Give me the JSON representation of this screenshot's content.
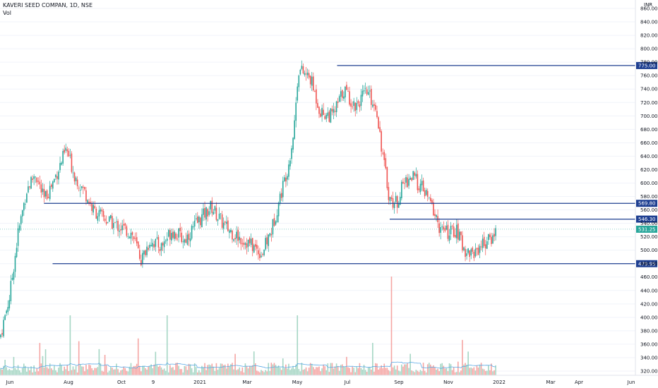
{
  "header": {
    "symbol": "KAVERI SEED COMPAN, 1D, NSE",
    "volume_label": "Vol",
    "currency": "INR"
  },
  "colors": {
    "up": "#26a69a",
    "down": "#ef5350",
    "vol_up": "#a5d6c4",
    "vol_down": "#f5a5a3",
    "vol_ma": "#5aa9e6",
    "level_line": "#1e3f91",
    "price_badge": "#26a69a",
    "grid": "#f0f3fa",
    "axis_text": "#131722"
  },
  "chart_data": {
    "type": "candlestick",
    "title": "KAVERI SEED COMPAN, 1D, NSE",
    "ylim": [
      310,
      860
    ],
    "y_ticks": [
      "320.00",
      "340.00",
      "360.00",
      "380.00",
      "400.00",
      "420.00",
      "440.00",
      "460.00",
      "480.00",
      "500.00",
      "520.00",
      "540.00",
      "560.00",
      "580.00",
      "600.00",
      "620.00",
      "640.00",
      "660.00",
      "680.00",
      "700.00",
      "720.00",
      "740.00",
      "760.00",
      "780.00",
      "800.00",
      "820.00",
      "840.00",
      "860.00"
    ],
    "x_ticks": [
      "Jun",
      "Aug",
      "Oct",
      "9",
      "2021",
      "Mar",
      "May",
      "Jul",
      "Sep",
      "Nov",
      "2022",
      "Mar",
      "Apr",
      "Jun"
    ],
    "price_path": [
      {
        "date": "2020-05-25",
        "price": 370
      },
      {
        "date": "2020-06-05",
        "price": 430
      },
      {
        "date": "2020-06-15",
        "price": 525
      },
      {
        "date": "2020-06-25",
        "price": 590
      },
      {
        "date": "2020-07-05",
        "price": 615
      },
      {
        "date": "2020-07-15",
        "price": 575
      },
      {
        "date": "2020-07-25",
        "price": 600
      },
      {
        "date": "2020-08-10",
        "price": 650
      },
      {
        "date": "2020-08-20",
        "price": 610
      },
      {
        "date": "2020-09-01",
        "price": 585
      },
      {
        "date": "2020-09-10",
        "price": 560
      },
      {
        "date": "2020-09-25",
        "price": 545
      },
      {
        "date": "2020-10-10",
        "price": 535
      },
      {
        "date": "2020-10-25",
        "price": 525
      },
      {
        "date": "2020-11-05",
        "price": 485
      },
      {
        "date": "2020-11-15",
        "price": 515
      },
      {
        "date": "2020-11-28",
        "price": 505
      },
      {
        "date": "2020-12-10",
        "price": 530
      },
      {
        "date": "2020-12-25",
        "price": 515
      },
      {
        "date": "2021-01-08",
        "price": 540
      },
      {
        "date": "2021-01-25",
        "price": 565
      },
      {
        "date": "2021-02-10",
        "price": 535
      },
      {
        "date": "2021-02-25",
        "price": 520
      },
      {
        "date": "2021-03-10",
        "price": 510
      },
      {
        "date": "2021-03-25",
        "price": 495
      },
      {
        "date": "2021-04-05",
        "price": 530
      },
      {
        "date": "2021-04-15",
        "price": 580
      },
      {
        "date": "2021-04-25",
        "price": 630
      },
      {
        "date": "2021-05-01",
        "price": 680
      },
      {
        "date": "2021-05-06",
        "price": 770
      },
      {
        "date": "2021-05-20",
        "price": 755
      },
      {
        "date": "2021-06-01",
        "price": 705
      },
      {
        "date": "2021-06-15",
        "price": 700
      },
      {
        "date": "2021-06-28",
        "price": 740
      },
      {
        "date": "2021-07-10",
        "price": 715
      },
      {
        "date": "2021-07-25",
        "price": 735
      },
      {
        "date": "2021-08-05",
        "price": 710
      },
      {
        "date": "2021-08-12",
        "price": 640
      },
      {
        "date": "2021-08-20",
        "price": 575
      },
      {
        "date": "2021-08-28",
        "price": 570
      },
      {
        "date": "2021-09-05",
        "price": 600
      },
      {
        "date": "2021-09-15",
        "price": 610
      },
      {
        "date": "2021-09-28",
        "price": 590
      },
      {
        "date": "2021-10-08",
        "price": 565
      },
      {
        "date": "2021-10-18",
        "price": 530
      },
      {
        "date": "2021-10-28",
        "price": 525
      },
      {
        "date": "2021-11-05",
        "price": 530
      },
      {
        "date": "2021-11-15",
        "price": 500
      },
      {
        "date": "2021-11-25",
        "price": 495
      },
      {
        "date": "2021-12-05",
        "price": 510
      },
      {
        "date": "2021-12-15",
        "price": 515
      },
      {
        "date": "2021-12-22",
        "price": 531.25
      }
    ],
    "horizontal_levels": [
      {
        "value": 775.0,
        "label": "775.00",
        "from": "2021-06-20"
      },
      {
        "value": 569.8,
        "label": "569.80",
        "from": "2020-07-15"
      },
      {
        "value": 546.3,
        "label": "546.30",
        "from": "2021-08-20"
      },
      {
        "value": 479.95,
        "label": "479.95",
        "from": "2020-07-25"
      }
    ],
    "last_price": {
      "value": 531.25,
      "label": "531.25"
    },
    "volume": {
      "series_name": "Vol",
      "spikes": [
        {
          "date": "2021-08-22",
          "relative": 1.0
        },
        {
          "date": "2021-05-05",
          "relative": 0.5
        },
        {
          "date": "2020-12-05",
          "relative": 0.5
        },
        {
          "date": "2020-08-15",
          "relative": 0.5
        }
      ]
    },
    "grid": true,
    "legend": "top-left"
  }
}
